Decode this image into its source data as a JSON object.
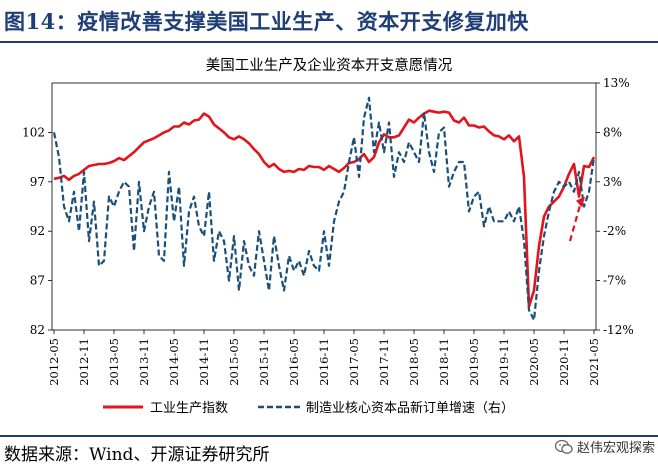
{
  "header": {
    "figure_title": "图14：疫情改善支撑美国工业生产、资本开支修复加快"
  },
  "footer": {
    "source": "数据来源：Wind、开源证券研究所",
    "watermark": "赵伟宏观探索"
  },
  "colors": {
    "title": "#1f3e78",
    "industrial": "#e3141b",
    "orders": "#1a4f7a",
    "arrow": "#e3141b"
  },
  "chart_data": {
    "type": "line",
    "title": "美国工业生产及企业资本开支意愿情况",
    "x": [
      "2012-05",
      "2012-06",
      "2012-07",
      "2012-08",
      "2012-09",
      "2012-10",
      "2012-11",
      "2012-12",
      "2013-01",
      "2013-02",
      "2013-03",
      "2013-04",
      "2013-05",
      "2013-06",
      "2013-07",
      "2013-08",
      "2013-09",
      "2013-10",
      "2013-11",
      "2013-12",
      "2014-01",
      "2014-02",
      "2014-03",
      "2014-04",
      "2014-05",
      "2014-06",
      "2014-07",
      "2014-08",
      "2014-09",
      "2014-10",
      "2014-11",
      "2014-12",
      "2015-01",
      "2015-02",
      "2015-03",
      "2015-04",
      "2015-05",
      "2015-06",
      "2015-07",
      "2015-08",
      "2015-09",
      "2015-10",
      "2015-11",
      "2015-12",
      "2016-01",
      "2016-02",
      "2016-03",
      "2016-04",
      "2016-05",
      "2016-06",
      "2016-07",
      "2016-08",
      "2016-09",
      "2016-10",
      "2016-11",
      "2016-12",
      "2017-01",
      "2017-02",
      "2017-03",
      "2017-04",
      "2017-05",
      "2017-06",
      "2017-07",
      "2017-08",
      "2017-09",
      "2017-10",
      "2017-11",
      "2017-12",
      "2018-01",
      "2018-02",
      "2018-03",
      "2018-04",
      "2018-05",
      "2018-06",
      "2018-07",
      "2018-08",
      "2018-09",
      "2018-10",
      "2018-11",
      "2018-12",
      "2019-01",
      "2019-02",
      "2019-03",
      "2019-04",
      "2019-05",
      "2019-06",
      "2019-07",
      "2019-08",
      "2019-09",
      "2019-10",
      "2019-11",
      "2019-12",
      "2020-01",
      "2020-02",
      "2020-03",
      "2020-04",
      "2020-05",
      "2020-06",
      "2020-07",
      "2020-08",
      "2020-09",
      "2020-10",
      "2020-11",
      "2020-12",
      "2021-01",
      "2021-02",
      "2021-03",
      "2021-04",
      "2021-05"
    ],
    "x_tick_labels": [
      "2012-05",
      "2012-11",
      "2013-05",
      "2013-11",
      "2014-05",
      "2014-11",
      "2015-05",
      "2015-11",
      "2016-05",
      "2016-11",
      "2017-05",
      "2017-11",
      "2018-05",
      "2018-11",
      "2019-05",
      "2019-11",
      "2020-05",
      "2020-11",
      "2021-05"
    ],
    "series": [
      {
        "name": "工业生产指数",
        "axis": "left",
        "values": [
          97.3,
          97.4,
          97.6,
          97.2,
          97.6,
          97.8,
          98.2,
          98.6,
          98.7,
          98.8,
          98.8,
          98.9,
          99.1,
          99.4,
          99.2,
          99.6,
          100.0,
          100.5,
          101.0,
          101.2,
          101.4,
          101.7,
          102.0,
          102.2,
          102.6,
          102.6,
          103.0,
          102.8,
          103.2,
          103.3,
          103.9,
          103.6,
          102.8,
          102.4,
          102.0,
          101.5,
          101.3,
          101.6,
          101.3,
          100.9,
          100.3,
          99.8,
          99.0,
          98.5,
          98.8,
          98.3,
          98.0,
          98.1,
          98.0,
          98.3,
          98.2,
          98.6,
          98.5,
          98.5,
          98.2,
          98.6,
          98.3,
          98.0,
          98.4,
          98.9,
          99.0,
          99.3,
          99.8,
          99.0,
          99.5,
          101.0,
          101.8,
          101.5,
          101.5,
          101.7,
          102.5,
          103.3,
          103.0,
          103.5,
          103.9,
          104.2,
          104.1,
          104.0,
          104.1,
          104.0,
          103.2,
          103.0,
          103.5,
          102.7,
          102.7,
          102.5,
          102.6,
          102.1,
          101.7,
          101.6,
          101.3,
          101.7,
          101.1,
          101.6,
          97.5,
          84.4,
          86.0,
          90.5,
          93.5,
          94.5,
          95.0,
          95.5,
          96.5,
          97.8,
          98.8,
          95.5,
          98.6,
          98.5,
          99.5
        ]
      },
      {
        "name": "制造业核心资本品新订单增速（右）",
        "axis": "right",
        "values": [
          8.0,
          5.5,
          0.5,
          -1.0,
          2.0,
          -2.0,
          4.0,
          -3.0,
          1.0,
          -5.5,
          -5.0,
          1.5,
          0.5,
          2.0,
          3.0,
          2.5,
          -4.0,
          3.0,
          -2.0,
          0.5,
          2.0,
          -4.5,
          -5.0,
          4.0,
          -1.0,
          2.5,
          -5.5,
          0.0,
          1.5,
          -1.5,
          -2.5,
          2.0,
          -5.0,
          -2.0,
          -3.0,
          -7.0,
          -2.5,
          -8.0,
          -3.0,
          -5.5,
          -6.5,
          -2.0,
          -5.0,
          -8.0,
          -2.5,
          -5.5,
          -8.0,
          -4.5,
          -6.0,
          -5.0,
          -6.5,
          -4.0,
          -5.5,
          -6.0,
          -2.0,
          -5.5,
          -1.0,
          1.0,
          2.0,
          5.0,
          7.5,
          3.5,
          9.5,
          11.5,
          6.0,
          9.0,
          6.0,
          9.0,
          3.5,
          6.0,
          5.0,
          7.0,
          6.0,
          5.0,
          10.0,
          6.0,
          4.0,
          8.0,
          8.5,
          2.5,
          4.0,
          5.0,
          5.0,
          0.0,
          1.5,
          2.0,
          -1.5,
          0.5,
          -1.0,
          -1.0,
          -1.0,
          0.0,
          -1.0,
          0.5,
          -3.0,
          -10.0,
          -11.0,
          -6.0,
          -2.5,
          0.0,
          2.0,
          3.0,
          2.5,
          3.0,
          2.0,
          4.0,
          0.5,
          2.0,
          5.5
        ]
      }
    ],
    "y_left": {
      "ticks": [
        82,
        87,
        92,
        97,
        102
      ],
      "ylim": [
        82,
        107
      ]
    },
    "y_right": {
      "ticks": [
        "13%",
        "8%",
        "3%",
        "-2%",
        "-7%",
        "-12%"
      ],
      "ylim": [
        -12,
        13
      ]
    },
    "legend": {
      "placement": "bottom",
      "entries": [
        "工业生产指数",
        "制造业核心资本品新订单增速（右）"
      ]
    },
    "annotations": [
      {
        "type": "arrow",
        "series": "制造业核心资本品新订单增速（右）",
        "meaning": "upward trend"
      }
    ]
  }
}
